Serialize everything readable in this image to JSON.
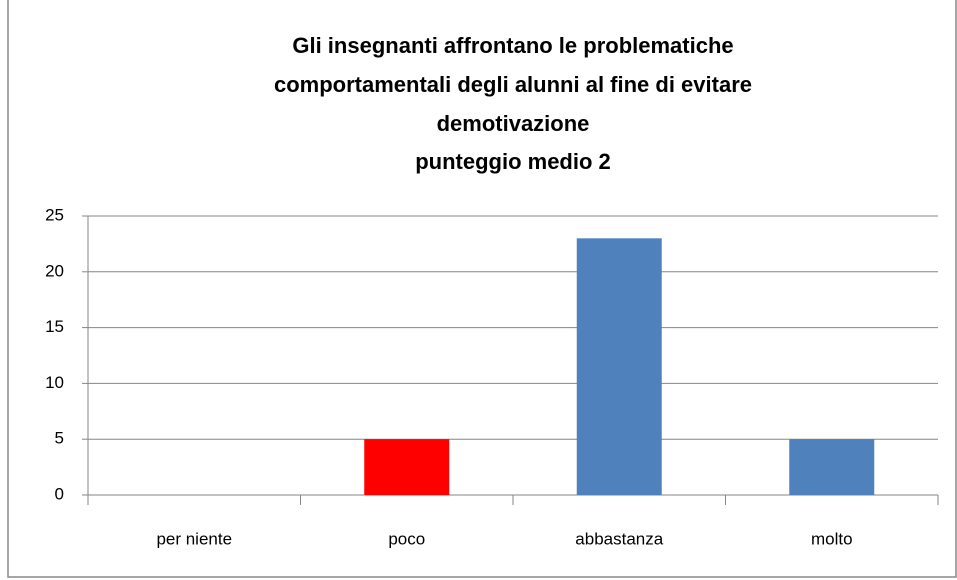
{
  "chart_data": {
    "type": "bar",
    "title": [
      "Gli insegnanti affrontano le problematiche",
      "comportamentali degli alunni al fine di evitare",
      "demotivazione",
      "punteggio medio 2"
    ],
    "categories": [
      "per niente",
      "poco",
      "abbastanza",
      "molto"
    ],
    "values": [
      0,
      5,
      23,
      5
    ],
    "colors": [
      "#4f81bd",
      "#ff0000",
      "#4f81bd",
      "#4f81bd"
    ],
    "ylim": [
      0,
      25
    ],
    "yticks": [
      0,
      5,
      10,
      15,
      20,
      25
    ],
    "grid": true
  }
}
